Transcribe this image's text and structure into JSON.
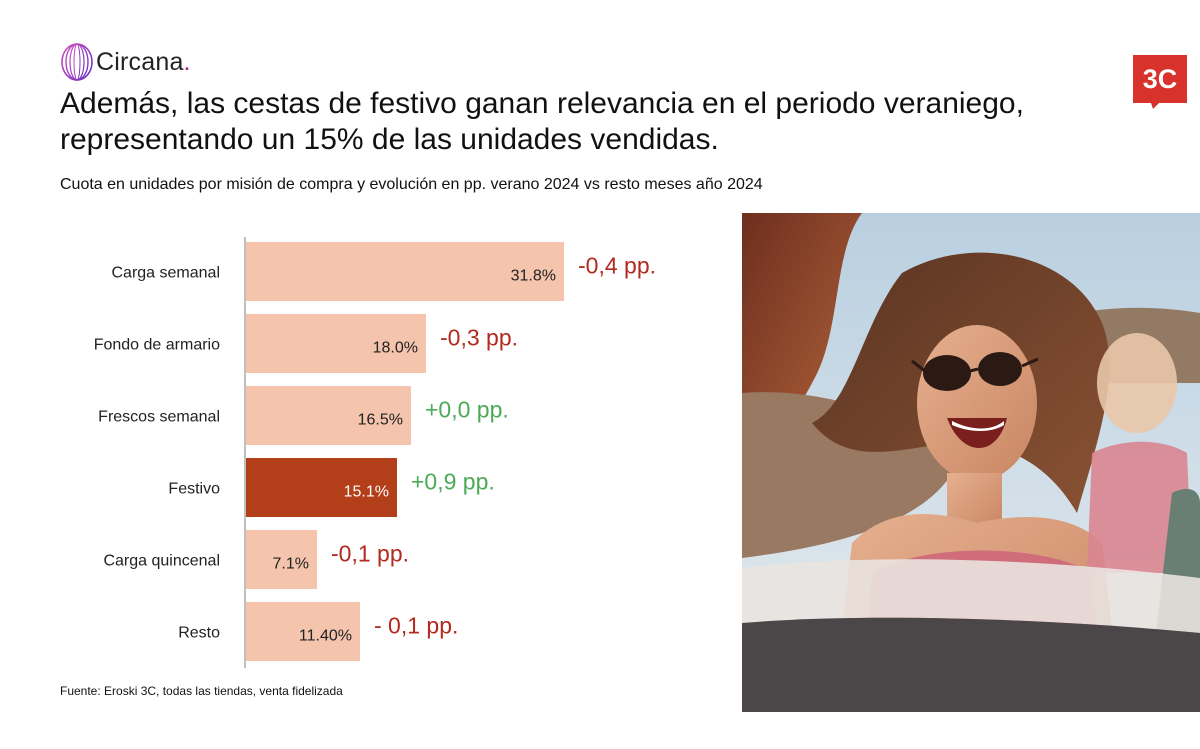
{
  "brand": {
    "name": "Circana",
    "name_suffix": ".",
    "partner_logo_text": "3C",
    "accent": "#b01e8e",
    "partner_color": "#d7322b"
  },
  "title": "Además, las cestas de festivo ganan relevancia en el periodo veraniego, representando un 15% de las unidades vendidas.",
  "subtitle": "Cuota en unidades por misión de compra y evolución en pp. verano 2024 vs resto meses año 2024",
  "footnote": "Fuente: Eroski 3C, todas las tiendas, venta fidelizada",
  "photo": {
    "subject": "smiling woman with sunglasses in a convertible car"
  },
  "chart_data": {
    "type": "bar",
    "orientation": "horizontal",
    "title": "Cuota en unidades por misión de compra y evolución en pp. verano 2024 vs resto meses año 2024",
    "xlabel": "",
    "ylabel": "",
    "xlim": [
      0,
      32
    ],
    "grid": false,
    "categories": [
      "Carga semanal",
      "Fondo de armario",
      "Frescos semanal",
      "Festivo",
      "Carga quincenal",
      "Resto"
    ],
    "values": [
      31.8,
      18.0,
      16.5,
      15.1,
      7.1,
      11.4
    ],
    "value_labels": [
      "31.8%",
      "18.0%",
      "16.5%",
      "15.1%",
      "7.1%",
      "11.40%"
    ],
    "change_labels": [
      "-0,4 pp.",
      "-0,3 pp.",
      "+0,0 pp.",
      "+0,9 pp.",
      "-0,1 pp.",
      "- 0,1 pp."
    ],
    "highlight_category": "Festivo",
    "colors": {
      "bar": "#f4c4ad",
      "bar_highlight": "#b33e1a",
      "positive": "#4caa55",
      "negative": "#b22a1e",
      "axis": "#aaaaaa"
    }
  }
}
